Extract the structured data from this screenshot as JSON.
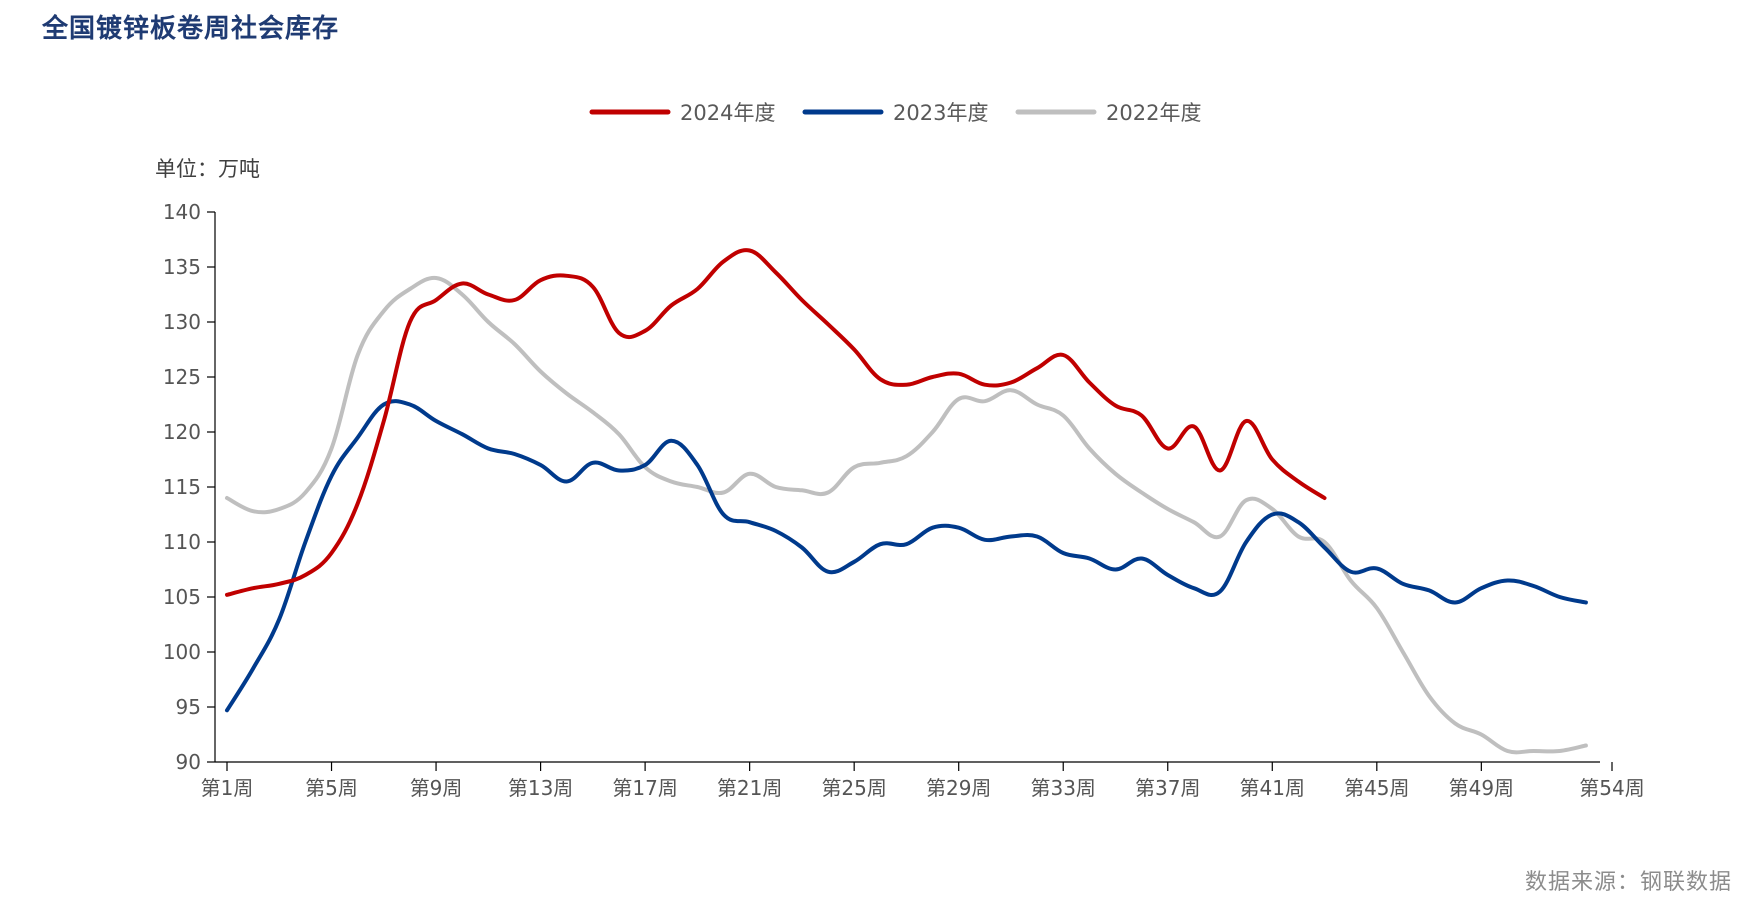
{
  "title": "全国镀锌板卷周社会库存",
  "source": "数据来源：钢联数据",
  "chart_data": {
    "type": "line",
    "title": "全国镀锌板卷周社会库存",
    "ylabel": "单位：万吨",
    "xlabel": "",
    "ylim": [
      90,
      140
    ],
    "yticks": [
      90,
      95,
      100,
      105,
      110,
      115,
      120,
      125,
      130,
      135,
      140
    ],
    "xlim": [
      1,
      54
    ],
    "xticks": [
      1,
      5,
      9,
      13,
      17,
      21,
      25,
      29,
      33,
      37,
      41,
      45,
      49,
      54
    ],
    "xtick_labels": [
      "第1周",
      "第5周",
      "第9周",
      "第13周",
      "第17周",
      "第21周",
      "第25周",
      "第29周",
      "第33周",
      "第37周",
      "第41周",
      "第45周",
      "第49周",
      "第54周"
    ],
    "grid": false,
    "legend": "top-center",
    "series": [
      {
        "name": "2024年度",
        "color": "#c00000",
        "x": [
          1,
          2,
          3,
          4,
          5,
          6,
          7,
          8,
          9,
          10,
          11,
          12,
          13,
          14,
          15,
          16,
          17,
          18,
          19,
          20,
          21,
          22,
          23,
          24,
          25,
          26,
          27,
          28,
          29,
          30,
          31,
          32,
          33,
          34,
          35,
          36,
          37,
          38,
          39,
          40,
          41,
          42,
          43
        ],
        "values": [
          105.2,
          105.8,
          106.2,
          107.0,
          109.0,
          113.5,
          121.0,
          130.0,
          132.0,
          133.5,
          132.5,
          132.0,
          133.8,
          134.2,
          133.2,
          129.0,
          129.2,
          131.5,
          133.0,
          135.5,
          136.5,
          134.5,
          132.0,
          129.8,
          127.5,
          124.8,
          124.3,
          125.0,
          125.3,
          124.3,
          124.5,
          125.8,
          127.0,
          124.5,
          122.4,
          121.5,
          118.5,
          120.5,
          116.5,
          121.0,
          117.5,
          115.5,
          114.0
        ]
      },
      {
        "name": "2023年度",
        "color": "#003a8c",
        "x": [
          1,
          2,
          3,
          4,
          5,
          6,
          7,
          8,
          9,
          10,
          11,
          12,
          13,
          14,
          15,
          16,
          17,
          18,
          19,
          20,
          21,
          22,
          23,
          24,
          25,
          26,
          27,
          28,
          29,
          30,
          31,
          32,
          33,
          34,
          35,
          36,
          37,
          38,
          39,
          40,
          41,
          42,
          43,
          44,
          45,
          46,
          47,
          48,
          49,
          50,
          51,
          52,
          53
        ],
        "values": [
          94.7,
          98.5,
          103.0,
          110.0,
          116.0,
          119.5,
          122.5,
          122.5,
          121.0,
          119.8,
          118.5,
          118.0,
          117.0,
          115.5,
          117.2,
          116.5,
          117.0,
          119.2,
          117.0,
          112.5,
          111.8,
          111.0,
          109.5,
          107.3,
          108.2,
          109.8,
          109.8,
          111.3,
          111.3,
          110.2,
          110.5,
          110.5,
          109.0,
          108.5,
          107.5,
          108.5,
          107.0,
          105.8,
          105.5,
          110.0,
          112.5,
          111.8,
          109.5,
          107.3,
          107.6,
          106.2,
          105.6,
          104.5,
          105.8,
          106.5,
          106.0,
          105.0,
          104.5
        ]
      },
      {
        "name": "2022年度",
        "color": "#bfbfbf",
        "x": [
          1,
          2,
          3,
          4,
          5,
          6,
          7,
          8,
          9,
          10,
          11,
          12,
          13,
          14,
          15,
          16,
          17,
          18,
          19,
          20,
          21,
          22,
          23,
          24,
          25,
          26,
          27,
          28,
          29,
          30,
          31,
          32,
          33,
          34,
          35,
          36,
          37,
          38,
          39,
          40,
          41,
          42,
          43,
          44,
          45,
          46,
          47,
          48,
          49,
          50,
          51,
          52,
          53
        ],
        "values": [
          114.0,
          112.8,
          113.0,
          114.5,
          118.5,
          127.0,
          131.0,
          133.0,
          134.0,
          132.5,
          130.0,
          128.0,
          125.5,
          123.5,
          121.8,
          119.8,
          116.8,
          115.5,
          115.0,
          114.5,
          116.2,
          115.0,
          114.7,
          114.5,
          116.8,
          117.2,
          117.8,
          120.0,
          123.0,
          122.8,
          123.8,
          122.5,
          121.5,
          118.5,
          116.2,
          114.5,
          113.0,
          111.8,
          110.5,
          113.8,
          113.0,
          110.5,
          110.0,
          106.5,
          104.0,
          100.0,
          96.0,
          93.5,
          92.5,
          91.0,
          91.0,
          91.0,
          91.5
        ]
      }
    ]
  }
}
